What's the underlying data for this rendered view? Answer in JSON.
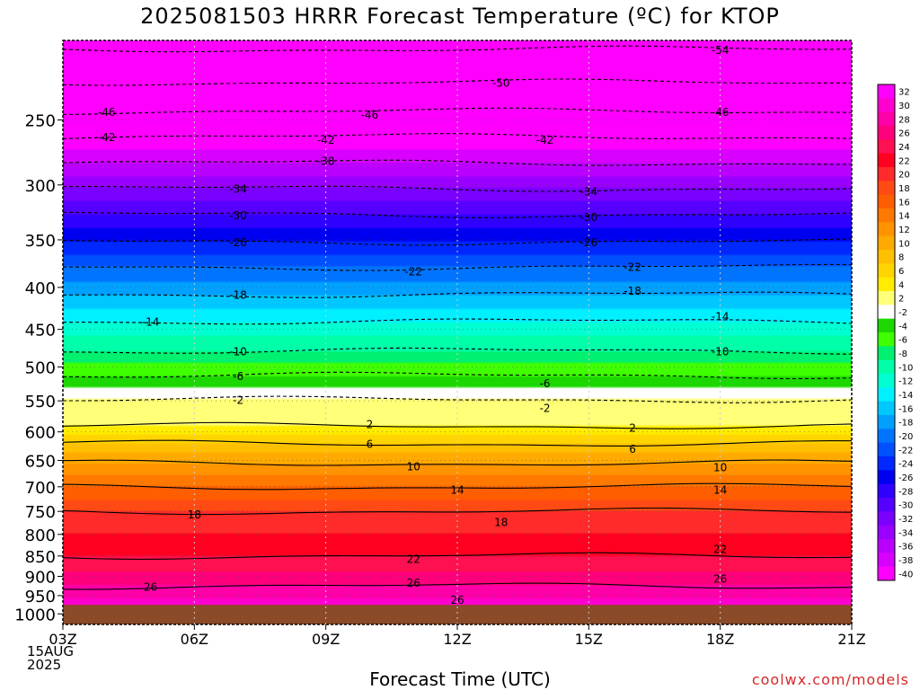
{
  "title": "2025081503 HRRR Forecast Temperature (ºC) for KTOP",
  "xlabel": "Forecast Time (UTC)",
  "credit": "coolwx.com/models",
  "date_label": {
    "day": "15AUG",
    "year": "2025"
  },
  "colors": {
    "ground": "#8b4a28",
    "credit": "#d42a2a"
  },
  "chart_data": {
    "type": "heatmap",
    "title": "2025081503 HRRR Forecast Temperature (ºC) for KTOP",
    "xlabel": "Forecast Time (UTC)",
    "ylabel": "",
    "x_ticks": [
      "03Z",
      "06Z",
      "09Z",
      "12Z",
      "15Z",
      "18Z",
      "21Z"
    ],
    "x_hours": [
      3,
      6,
      9,
      12,
      15,
      18,
      21
    ],
    "y_ticks": [
      250,
      300,
      350,
      400,
      450,
      500,
      550,
      600,
      650,
      700,
      750,
      800,
      850,
      900,
      950,
      1000
    ],
    "y_range_hpa": [
      200,
      1030
    ],
    "y_scale": "log-pressure",
    "ground_pressure_hpa": 975,
    "colorbar": {
      "labels": [
        32,
        30,
        28,
        26,
        24,
        22,
        20,
        18,
        16,
        14,
        12,
        10,
        8,
        6,
        4,
        2,
        -2,
        -4,
        -6,
        -8,
        -10,
        -12,
        -14,
        -16,
        -18,
        -20,
        -22,
        -24,
        -26,
        -28,
        -30,
        -32,
        -34,
        -36,
        -38,
        -40
      ],
      "colors": [
        "#ff00ff",
        "#ff00d0",
        "#ff00a8",
        "#ff007c",
        "#ff1050",
        "#ff0020",
        "#ff2a2a",
        "#ff4a14",
        "#ff5e00",
        "#ff7800",
        "#ff9400",
        "#ffaa00",
        "#ffc000",
        "#ffd400",
        "#ffec00",
        "#ffff78",
        "#ffffff",
        "#1cd800",
        "#40ff00",
        "#00f070",
        "#00ffa8",
        "#00ffd2",
        "#00f0ff",
        "#00c8ff",
        "#00a0ff",
        "#0074ff",
        "#0050ff",
        "#0028ff",
        "#0000f0",
        "#3000ff",
        "#5600ff",
        "#7a00ff",
        "#9a00ff",
        "#ba00ff",
        "#d800ff",
        "#ff00ff"
      ]
    },
    "isotherms": [
      {
        "value": -54,
        "pressure": 205
      },
      {
        "value": -50,
        "pressure": 225
      },
      {
        "value": -46,
        "pressure": 244
      },
      {
        "value": -42,
        "pressure": 262
      },
      {
        "value": -38,
        "pressure": 282
      },
      {
        "value": -34,
        "pressure": 303
      },
      {
        "value": -30,
        "pressure": 326
      },
      {
        "value": -26,
        "pressure": 352
      },
      {
        "value": -22,
        "pressure": 378
      },
      {
        "value": -18,
        "pressure": 408
      },
      {
        "value": -14,
        "pressure": 440
      },
      {
        "value": -10,
        "pressure": 478
      },
      {
        "value": -6,
        "pressure": 512
      },
      {
        "value": -2,
        "pressure": 548
      },
      {
        "value": 2,
        "pressure": 590
      },
      {
        "value": 6,
        "pressure": 620
      },
      {
        "value": 10,
        "pressure": 655
      },
      {
        "value": 14,
        "pressure": 700
      },
      {
        "value": 18,
        "pressure": 750
      },
      {
        "value": 22,
        "pressure": 850
      },
      {
        "value": 26,
        "pressure": 925
      }
    ],
    "contour_labels": [
      {
        "text": "-54",
        "hour": 18.0,
        "pressure": 205
      },
      {
        "text": "-50",
        "hour": 13.0,
        "pressure": 225
      },
      {
        "text": "-46",
        "hour": 4.0,
        "pressure": 244
      },
      {
        "text": "-46",
        "hour": 10.0,
        "pressure": 246
      },
      {
        "text": "-46",
        "hour": 18.0,
        "pressure": 244
      },
      {
        "text": "-42",
        "hour": 4.0,
        "pressure": 262
      },
      {
        "text": "-42",
        "hour": 9.0,
        "pressure": 264
      },
      {
        "text": "-42",
        "hour": 14.0,
        "pressure": 264
      },
      {
        "text": "-38",
        "hour": 9.0,
        "pressure": 280
      },
      {
        "text": "-34",
        "hour": 7.0,
        "pressure": 303
      },
      {
        "text": "-34",
        "hour": 15.0,
        "pressure": 305
      },
      {
        "text": "-30",
        "hour": 7.0,
        "pressure": 326
      },
      {
        "text": "-30",
        "hour": 15.0,
        "pressure": 328
      },
      {
        "text": "-26",
        "hour": 7.0,
        "pressure": 352
      },
      {
        "text": "-26",
        "hour": 15.0,
        "pressure": 352
      },
      {
        "text": "-22",
        "hour": 11.0,
        "pressure": 382
      },
      {
        "text": "-22",
        "hour": 16.0,
        "pressure": 377
      },
      {
        "text": "-18",
        "hour": 7.0,
        "pressure": 408
      },
      {
        "text": "-18",
        "hour": 16.0,
        "pressure": 403
      },
      {
        "text": "-14",
        "hour": 5.0,
        "pressure": 440
      },
      {
        "text": "-14",
        "hour": 18.0,
        "pressure": 433
      },
      {
        "text": "-10",
        "hour": 7.0,
        "pressure": 478
      },
      {
        "text": "-10",
        "hour": 18.0,
        "pressure": 478
      },
      {
        "text": "-6",
        "hour": 7.0,
        "pressure": 512
      },
      {
        "text": "-6",
        "hour": 14.0,
        "pressure": 523
      },
      {
        "text": "-2",
        "hour": 7.0,
        "pressure": 548
      },
      {
        "text": "-2",
        "hour": 14.0,
        "pressure": 560
      },
      {
        "text": "2",
        "hour": 10.0,
        "pressure": 586
      },
      {
        "text": "2",
        "hour": 16.0,
        "pressure": 592
      },
      {
        "text": "6",
        "hour": 10.0,
        "pressure": 620
      },
      {
        "text": "6",
        "hour": 16.0,
        "pressure": 628
      },
      {
        "text": "10",
        "hour": 11.0,
        "pressure": 660
      },
      {
        "text": "10",
        "hour": 18.0,
        "pressure": 662
      },
      {
        "text": "14",
        "hour": 12.0,
        "pressure": 705
      },
      {
        "text": "14",
        "hour": 18.0,
        "pressure": 705
      },
      {
        "text": "18",
        "hour": 6.0,
        "pressure": 755
      },
      {
        "text": "18",
        "hour": 13.0,
        "pressure": 772
      },
      {
        "text": "22",
        "hour": 11.0,
        "pressure": 856
      },
      {
        "text": "22",
        "hour": 18.0,
        "pressure": 832
      },
      {
        "text": "26",
        "hour": 5.0,
        "pressure": 925
      },
      {
        "text": "26",
        "hour": 11.0,
        "pressure": 915
      },
      {
        "text": "26",
        "hour": 18.0,
        "pressure": 905
      },
      {
        "text": "26",
        "hour": 12.0,
        "pressure": 960
      }
    ]
  }
}
